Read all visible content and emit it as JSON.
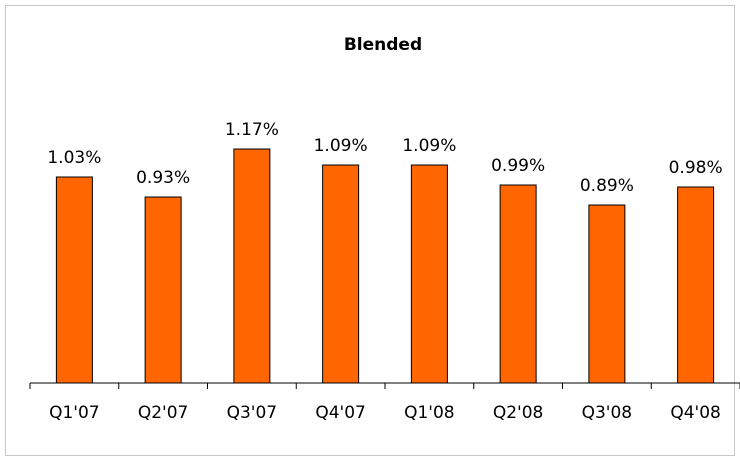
{
  "chart_data": {
    "type": "bar",
    "title": "Blended",
    "categories": [
      "Q1'07",
      "Q2'07",
      "Q3'07",
      "Q4'07",
      "Q1'08",
      "Q2'08",
      "Q3'08",
      "Q4'08"
    ],
    "values": [
      1.03,
      0.93,
      1.17,
      1.09,
      1.09,
      0.99,
      0.89,
      0.98
    ],
    "data_labels": [
      "1.03%",
      "0.93%",
      "1.17%",
      "1.09%",
      "1.09%",
      "0.99%",
      "0.89%",
      "0.98%"
    ],
    "xlabel": "",
    "ylabel": "",
    "ylim": [
      0,
      1.4
    ],
    "grid": false,
    "legend": "none",
    "bar_color": "#FF6600",
    "bar_edge_color": "#000000"
  }
}
